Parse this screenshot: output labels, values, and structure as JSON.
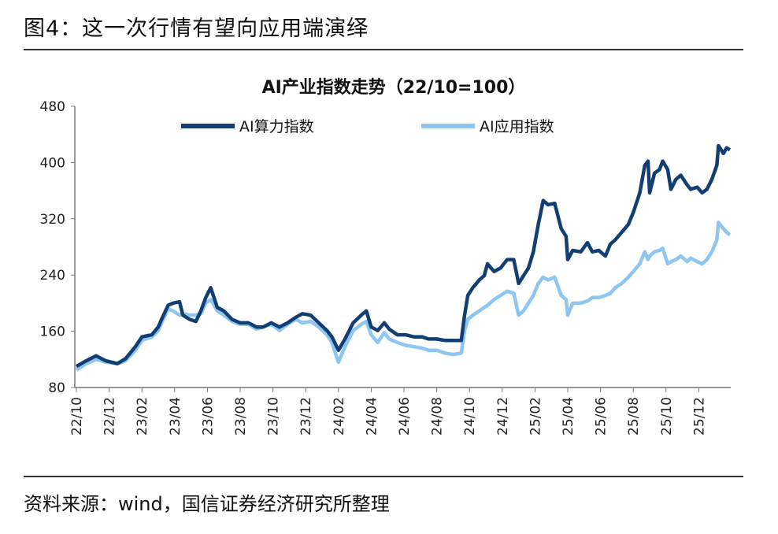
{
  "figure_title": "图4：这一次行情有望向应用端演绎",
  "source": "资料来源：wind，国信证券经济研究所整理",
  "chart_data": {
    "type": "line",
    "title": "AI产业指数走势（22/10=100）",
    "xlabel": "",
    "ylabel": "",
    "x_unit": "months since 2022-10",
    "ylim": [
      80,
      480
    ],
    "yticks": [
      80,
      160,
      240,
      320,
      400,
      480
    ],
    "xtick_labels": [
      "22/10",
      "22/12",
      "23/02",
      "23/04",
      "23/06",
      "23/08",
      "23/10",
      "23/12",
      "24/02",
      "24/04",
      "24/06",
      "24/08",
      "24/10",
      "24/12",
      "25/02",
      "25/04",
      "25/06",
      "25/08",
      "25/10",
      "25/12"
    ],
    "legend_position": "top",
    "grid": false,
    "x": [
      0,
      0.6,
      1.2,
      1.8,
      2.5,
      3.0,
      3.6,
      4.0,
      4.6,
      5.0,
      5.2,
      5.6,
      5.9,
      6.3,
      6.5,
      6.9,
      7.3,
      7.6,
      7.9,
      8.2,
      8.6,
      9.0,
      9.5,
      10.0,
      10.5,
      11.0,
      11.4,
      11.9,
      12.4,
      12.9,
      13.4,
      13.8,
      14.3,
      14.8,
      15.3,
      15.6,
      16.0,
      16.4,
      16.9,
      17.4,
      17.7,
      18.0,
      18.4,
      18.8,
      19.1,
      19.6,
      20.1,
      20.6,
      21.1,
      21.5,
      22.0,
      22.5,
      23.0,
      23.5,
      23.7,
      23.9,
      24.2,
      24.6,
      24.9,
      25.1,
      25.5,
      25.9,
      26.3,
      26.7,
      27.0,
      27.3,
      27.6,
      27.9,
      28.2,
      28.5,
      28.8,
      29.2,
      29.6,
      29.9,
      30.0,
      30.3,
      30.8,
      31.2,
      31.5,
      31.9,
      32.3,
      32.6,
      32.9,
      33.3,
      33.7,
      34.0,
      34.4,
      34.7,
      34.9,
      35.0,
      35.3,
      35.6,
      35.8,
      36.1,
      36.3,
      36.6,
      36.9,
      37.3,
      37.5,
      37.9,
      38.2,
      38.5,
      38.8,
      39.1,
      39.2,
      39.5,
      39.7,
      39.9
    ],
    "series": [
      {
        "name": "AI算力指数",
        "color": "#123e73",
        "values": [
          110,
          118,
          125,
          118,
          114,
          121,
          138,
          152,
          155,
          166,
          177,
          197,
          200,
          202,
          183,
          177,
          174,
          189,
          208,
          222,
          194,
          189,
          177,
          172,
          172,
          166,
          166,
          172,
          166,
          172,
          180,
          185,
          183,
          172,
          161,
          152,
          133,
          149,
          172,
          183,
          189,
          166,
          161,
          172,
          163,
          155,
          155,
          152,
          152,
          149,
          149,
          147,
          147,
          147,
          183,
          211,
          222,
          233,
          239,
          256,
          245,
          250,
          262,
          262,
          228,
          239,
          250,
          273,
          312,
          346,
          340,
          342,
          306,
          295,
          262,
          275,
          273,
          286,
          273,
          275,
          267,
          284,
          290,
          301,
          312,
          329,
          357,
          396,
          402,
          357,
          385,
          390,
          402,
          390,
          362,
          376,
          382,
          368,
          362,
          365,
          357,
          362,
          376,
          396,
          424,
          413,
          421,
          418
        ]
      },
      {
        "name": "AI应用指数",
        "color": "#8ec6f2",
        "values": [
          105,
          114,
          120,
          116,
          114,
          118,
          133,
          147,
          152,
          161,
          172,
          192,
          189,
          183,
          185,
          183,
          183,
          185,
          200,
          205,
          189,
          183,
          174,
          170,
          170,
          163,
          166,
          170,
          161,
          170,
          177,
          172,
          174,
          166,
          155,
          144,
          116,
          138,
          161,
          170,
          174,
          155,
          144,
          158,
          149,
          144,
          140,
          138,
          136,
          133,
          133,
          129,
          127,
          129,
          161,
          177,
          183,
          189,
          194,
          197,
          205,
          211,
          217,
          214,
          183,
          189,
          200,
          211,
          228,
          237,
          233,
          237,
          211,
          205,
          183,
          200,
          200,
          203,
          208,
          208,
          211,
          214,
          222,
          228,
          237,
          245,
          256,
          273,
          262,
          267,
          273,
          275,
          278,
          256,
          259,
          262,
          267,
          259,
          264,
          259,
          256,
          262,
          273,
          290,
          315,
          306,
          301,
          297
        ]
      }
    ]
  }
}
